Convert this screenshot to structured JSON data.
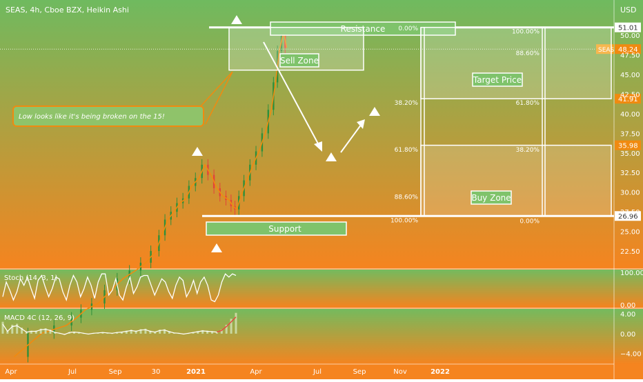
{
  "header": {
    "symbol_line": "SEAS, 4h, Cboe BZX, Heikin Ashi",
    "currency": "USD"
  },
  "colors": {
    "bg_top": "#6fba5f",
    "bg_bottom": "#f5841f",
    "candle_up": "#2f8f3a",
    "candle_down": "#e2433b",
    "price_line": "#f08a10",
    "annotation": "#ffffff",
    "label_fill": "#7fc36b"
  },
  "chart_data": [
    {
      "type": "line",
      "title": "SEAS, 4h, Cboe BZX, Heikin Ashi",
      "x_ticks": [
        "Apr",
        "Jul",
        "Sep",
        "30",
        "2021",
        "Apr",
        "Jul",
        "Sep",
        "Nov",
        "2022"
      ],
      "y_ticks": [
        22.5,
        25.0,
        27.5,
        30.0,
        32.5,
        35.0,
        37.5,
        40.0,
        42.5,
        45.0,
        47.5,
        50.0,
        52.5
      ],
      "y_tick_labels": [
        "22.50",
        "25.00",
        "27.50",
        "30.00",
        "32.50",
        "35.00",
        "37.50",
        "40.00",
        "42.50",
        "45.00",
        "47.50",
        "50.00",
        "52.50"
      ],
      "ylim": [
        20.3,
        54.5
      ],
      "price_path": [
        {
          "x": 0.05,
          "y": 9.0
        },
        {
          "x": 0.5,
          "y": 12.0
        },
        {
          "x": 0.9,
          "y": 13.0
        },
        {
          "x": 1.1,
          "y": 14.0
        },
        {
          "x": 1.3,
          "y": 15.0
        },
        {
          "x": 1.6,
          "y": 15.8
        },
        {
          "x": 1.9,
          "y": 17.5
        },
        {
          "x": 2.2,
          "y": 19.0
        },
        {
          "x": 2.5,
          "y": 20.0
        },
        {
          "x": 2.75,
          "y": 21.0
        },
        {
          "x": 3.0,
          "y": 22.5
        },
        {
          "x": 3.15,
          "y": 24.5
        },
        {
          "x": 3.3,
          "y": 26.5
        },
        {
          "x": 3.45,
          "y": 27.5
        },
        {
          "x": 3.6,
          "y": 28.6
        },
        {
          "x": 3.75,
          "y": 29.2
        },
        {
          "x": 3.9,
          "y": 30.8
        },
        {
          "x": 4.05,
          "y": 31.8
        },
        {
          "x": 4.15,
          "y": 33.5
        },
        {
          "x": 4.25,
          "y": 32.2
        },
        {
          "x": 4.35,
          "y": 30.5
        },
        {
          "x": 4.45,
          "y": 29.5
        },
        {
          "x": 4.55,
          "y": 29.0
        },
        {
          "x": 4.62,
          "y": 28.2
        },
        {
          "x": 4.68,
          "y": 27.8
        },
        {
          "x": 4.75,
          "y": 29.5
        },
        {
          "x": 4.85,
          "y": 31.5
        },
        {
          "x": 4.95,
          "y": 33.5
        },
        {
          "x": 5.05,
          "y": 35.2
        },
        {
          "x": 5.15,
          "y": 37.5
        },
        {
          "x": 5.25,
          "y": 40.5
        },
        {
          "x": 5.32,
          "y": 44.0
        },
        {
          "x": 5.38,
          "y": 48.0
        },
        {
          "x": 5.45,
          "y": 50.4
        },
        {
          "x": 5.5,
          "y": 48.4
        }
      ],
      "last_price": "48.24",
      "last_price_label": "SEAS",
      "levels": [
        {
          "label": "51.01",
          "value": 51.01,
          "style": "white"
        },
        {
          "label": "41.91",
          "value": 41.91,
          "style": "orange"
        },
        {
          "label": "35.98",
          "value": 35.98,
          "style": "orange"
        },
        {
          "label": "26.96",
          "value": 26.96,
          "style": "white"
        }
      ],
      "fib_left": [
        {
          "label": "0.00%",
          "value": 51.0
        },
        {
          "label": "38.20%",
          "value": 41.5
        },
        {
          "label": "61.80%",
          "value": 35.5
        },
        {
          "label": "88.60%",
          "value": 29.5
        },
        {
          "label": "100.00%",
          "value": 26.5
        }
      ],
      "fib_right": [
        {
          "label": "100.00%",
          "value": 50.6
        },
        {
          "label": "88.60%",
          "value": 47.8
        },
        {
          "label": "61.80%",
          "value": 41.5
        },
        {
          "label": "38.20%",
          "value": 35.5
        },
        {
          "label": "0.00%",
          "value": 26.4
        }
      ],
      "annotations": {
        "resistance": "Resistance",
        "support": "Support",
        "sell_zone": "Sell Zone",
        "buy_zone": "Buy Zone",
        "target_price": "Target Price",
        "callout": "Low looks like it's being broken on the 15!"
      }
    },
    {
      "type": "line",
      "title": "Stoch (14, 3, 1)",
      "y_ticks": [
        0,
        100
      ],
      "y_tick_labels": [
        "0.00",
        "100.00"
      ],
      "ylim": [
        -8,
        108
      ],
      "values": [
        25,
        70,
        45,
        15,
        40,
        80,
        60,
        85,
        50,
        20,
        75,
        90,
        55,
        25,
        50,
        85,
        80,
        40,
        15,
        60,
        90,
        70,
        25,
        50,
        85,
        60,
        20,
        70,
        95,
        95,
        30,
        45,
        80,
        30,
        15,
        55,
        85,
        35,
        55,
        85,
        90,
        90,
        60,
        30,
        55,
        80,
        70,
        40,
        20,
        60,
        85,
        75,
        25,
        45,
        75,
        35,
        70,
        85,
        60,
        15,
        10,
        30,
        70,
        95,
        85,
        95,
        90
      ]
    },
    {
      "type": "bar",
      "title": "MACD 4C (12, 26, 9)",
      "y_ticks": [
        -4,
        0,
        4
      ],
      "y_tick_labels": [
        "−4.00",
        "0.00",
        "4.00"
      ],
      "ylim": [
        -6,
        5
      ],
      "values": [
        2.4,
        0.6,
        1.8,
        2.0,
        1.2,
        0.4,
        0.6,
        0.6,
        1.0,
        1.1,
        0.8,
        0.3,
        0.1,
        -0.2,
        0.3,
        0.4,
        0.3,
        0.1,
        -0.1,
        0.1,
        0.2,
        0.3,
        0.2,
        0.1,
        0.3,
        0.4,
        0.6,
        0.8,
        0.6,
        0.9,
        1.0,
        0.6,
        0.4,
        0.8,
        0.9,
        0.5,
        0.2,
        0.1,
        -0.1,
        0.1,
        0.3,
        0.5,
        0.7,
        0.6,
        0.5,
        0.4,
        0.8,
        1.8,
        3.0,
        4.2
      ]
    }
  ]
}
